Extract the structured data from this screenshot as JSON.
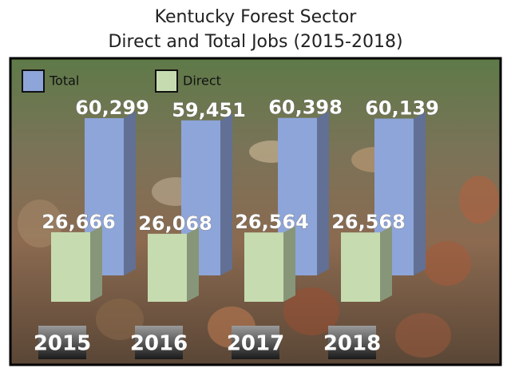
{
  "chart_data": {
    "type": "bar",
    "title": "Kentucky Forest Sector",
    "subtitle": "Direct and Total Jobs (2015-2018)",
    "categories": [
      "2015",
      "2016",
      "2017",
      "2018"
    ],
    "series": [
      {
        "name": "Total",
        "color": "#8ea5d9",
        "values": [
          60299,
          59451,
          60398,
          60139
        ],
        "value_labels": [
          "60,299",
          "59,451",
          "60,398",
          "60,139"
        ]
      },
      {
        "name": "Direct",
        "color": "#c6dcb0",
        "values": [
          26666,
          26068,
          26564,
          26568
        ],
        "value_labels": [
          "26,666",
          "26,068",
          "26,564",
          "26,568"
        ]
      }
    ],
    "legend": "top-left"
  }
}
